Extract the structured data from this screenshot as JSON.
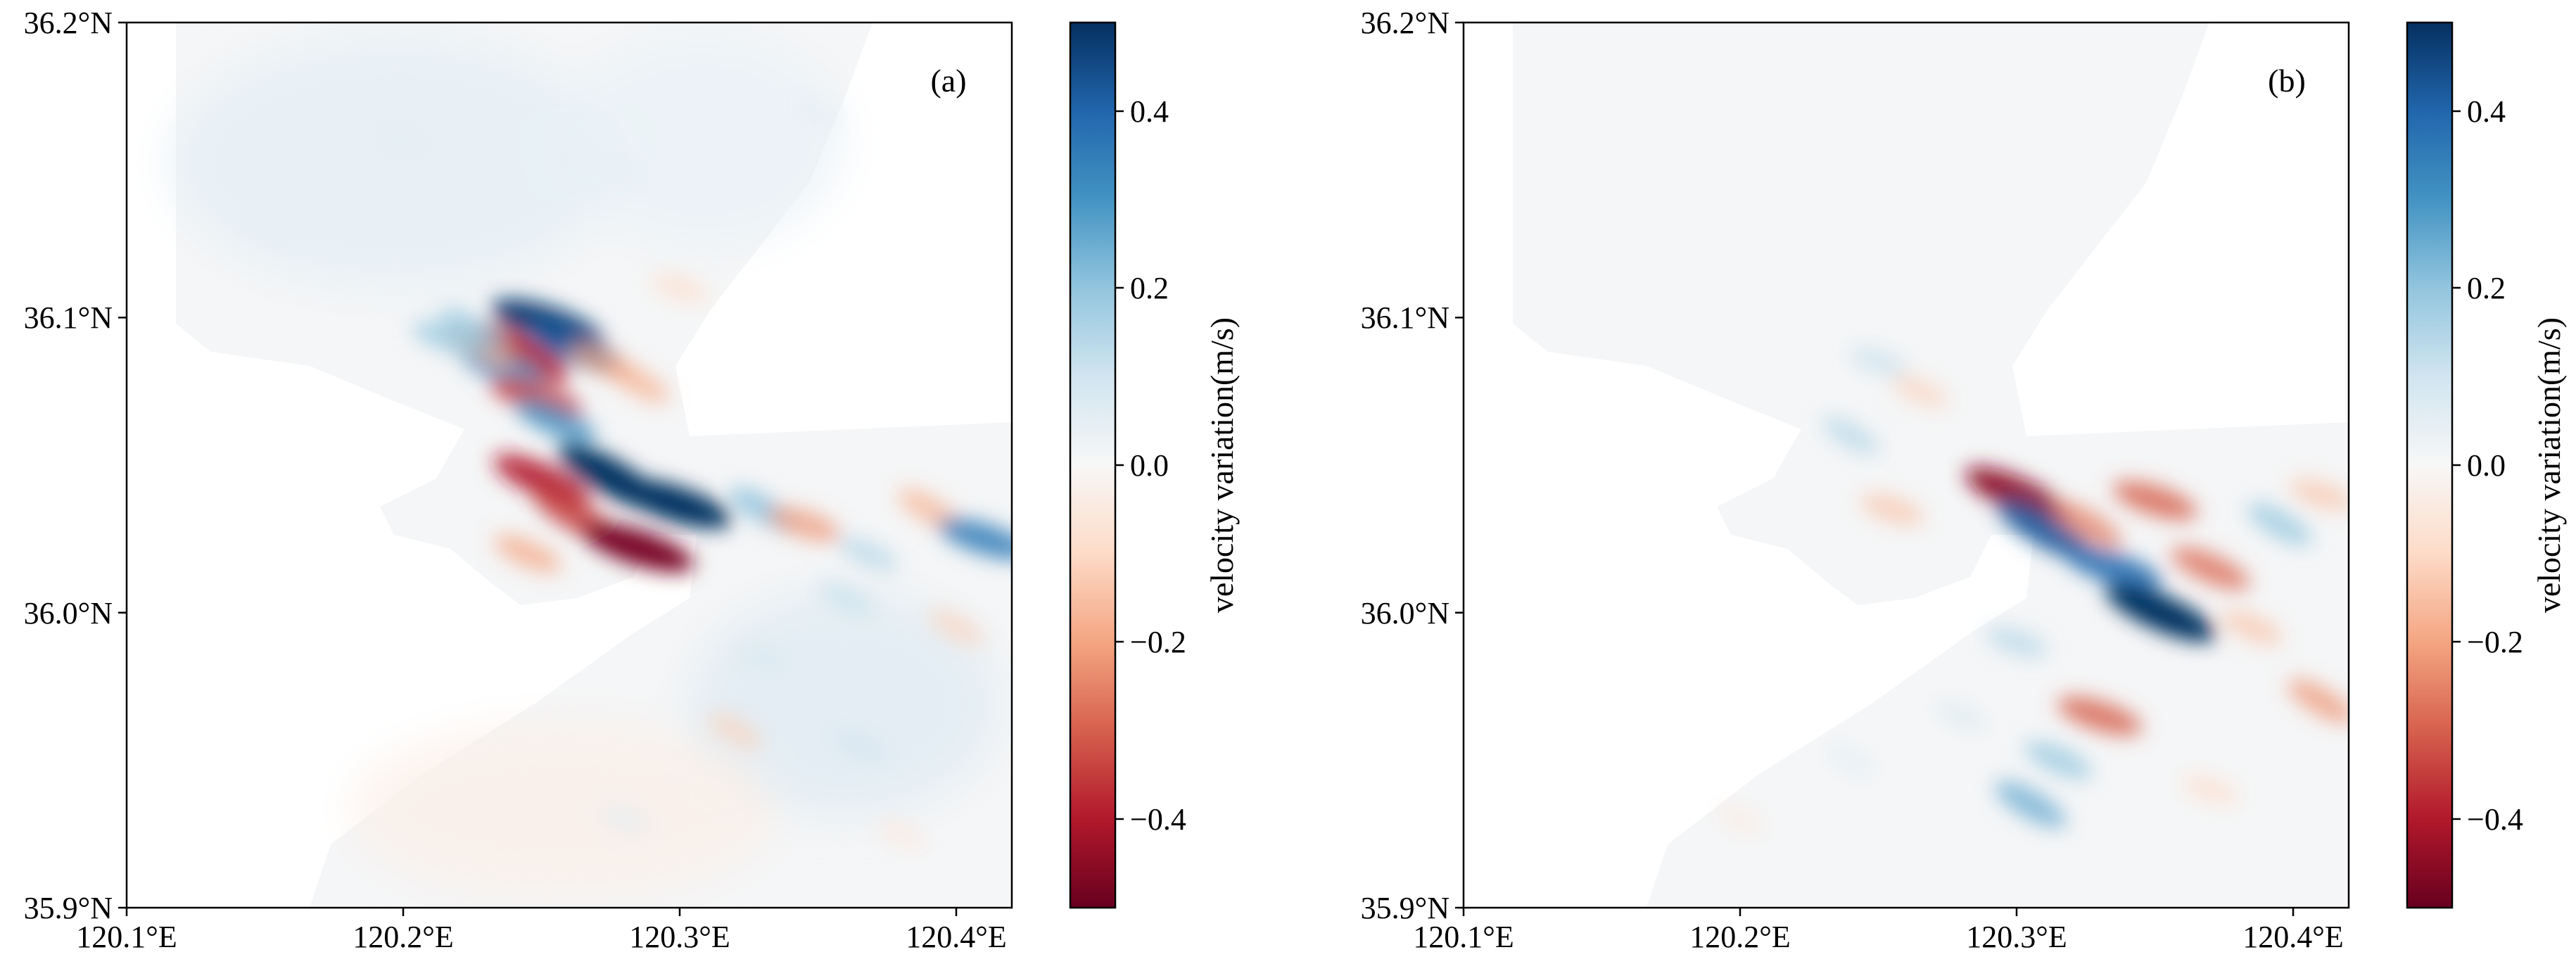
{
  "chart_data": [
    {
      "type": "heatmap",
      "panel_label": "(a)",
      "x_ticks": [
        "120.1°E",
        "120.2°E",
        "120.3°E",
        "120.4°E"
      ],
      "y_ticks": [
        "36.2°N",
        "36.1°N",
        "36.0°N",
        "35.9°N"
      ],
      "xlim": [
        120.1,
        120.42
      ],
      "ylim": [
        35.9,
        36.2
      ],
      "colorbar": {
        "label": "velocity variation(m/s)",
        "ticks": [
          "0.4",
          "0.2",
          "0.0",
          "−0.2",
          "−0.4"
        ],
        "range": [
          -0.5,
          0.5
        ],
        "colormap": "RdBu"
      },
      "features": [
        {
          "x": 120.252,
          "y": 36.098,
          "value": 0.48
        },
        {
          "x": 120.262,
          "y": 36.09,
          "value": 0.42
        },
        {
          "x": 120.243,
          "y": 36.088,
          "value": -0.4
        },
        {
          "x": 120.236,
          "y": 36.083,
          "value": 0.3
        },
        {
          "x": 120.228,
          "y": 36.09,
          "value": -0.2
        },
        {
          "x": 120.225,
          "y": 36.096,
          "value": 0.2
        },
        {
          "x": 120.216,
          "y": 36.093,
          "value": 0.2
        },
        {
          "x": 120.272,
          "y": 36.085,
          "value": -0.2
        },
        {
          "x": 120.285,
          "y": 36.078,
          "value": -0.18
        },
        {
          "x": 120.248,
          "y": 36.073,
          "value": -0.35
        },
        {
          "x": 120.255,
          "y": 36.065,
          "value": 0.3
        },
        {
          "x": 120.275,
          "y": 36.046,
          "value": 0.5
        },
        {
          "x": 120.298,
          "y": 36.037,
          "value": 0.5
        },
        {
          "x": 120.25,
          "y": 36.045,
          "value": -0.4
        },
        {
          "x": 120.262,
          "y": 36.033,
          "value": -0.35
        },
        {
          "x": 120.285,
          "y": 36.022,
          "value": -0.48
        },
        {
          "x": 120.245,
          "y": 36.02,
          "value": -0.2
        },
        {
          "x": 120.33,
          "y": 36.035,
          "value": 0.22
        },
        {
          "x": 120.345,
          "y": 36.03,
          "value": -0.22
        },
        {
          "x": 120.368,
          "y": 36.02,
          "value": 0.15
        },
        {
          "x": 120.39,
          "y": 36.035,
          "value": -0.18
        },
        {
          "x": 120.41,
          "y": 36.025,
          "value": 0.35
        },
        {
          "x": 120.36,
          "y": 36.005,
          "value": 0.12
        },
        {
          "x": 120.4,
          "y": 35.995,
          "value": -0.12
        },
        {
          "x": 120.33,
          "y": 35.985,
          "value": 0.08
        },
        {
          "x": 120.365,
          "y": 35.955,
          "value": 0.1
        },
        {
          "x": 120.32,
          "y": 35.96,
          "value": -0.12
        },
        {
          "x": 120.28,
          "y": 35.93,
          "value": 0.06
        },
        {
          "x": 120.38,
          "y": 35.925,
          "value": -0.06
        },
        {
          "x": 120.15,
          "y": 36.13,
          "value": 0.04
        },
        {
          "x": 120.2,
          "y": 36.16,
          "value": 0.05
        },
        {
          "x": 120.28,
          "y": 36.15,
          "value": 0.04
        },
        {
          "x": 120.35,
          "y": 36.17,
          "value": 0.05
        },
        {
          "x": 120.3,
          "y": 36.11,
          "value": -0.1
        }
      ]
    },
    {
      "type": "heatmap",
      "panel_label": "(b)",
      "x_ticks": [
        "120.1°E",
        "120.2°E",
        "120.3°E",
        "120.4°E"
      ],
      "y_ticks": [
        "36.2°N",
        "36.1°N",
        "36.0°N",
        "35.9°N"
      ],
      "xlim": [
        120.1,
        120.42
      ],
      "ylim": [
        35.9,
        36.2
      ],
      "colorbar": {
        "label": "velocity variation(m/s)",
        "ticks": [
          "0.4",
          "0.2",
          "0.0",
          "−0.2",
          "−0.4"
        ],
        "range": [
          -0.5,
          0.5
        ],
        "colormap": "RdBu"
      },
      "features": [
        {
          "x": 120.25,
          "y": 36.085,
          "value": 0.12
        },
        {
          "x": 120.265,
          "y": 36.075,
          "value": -0.12
        },
        {
          "x": 120.24,
          "y": 36.06,
          "value": 0.15
        },
        {
          "x": 120.255,
          "y": 36.035,
          "value": -0.15
        },
        {
          "x": 120.3,
          "y": 36.04,
          "value": -0.45
        },
        {
          "x": 120.31,
          "y": 36.028,
          "value": 0.42
        },
        {
          "x": 120.335,
          "y": 36.015,
          "value": 0.38
        },
        {
          "x": 120.352,
          "y": 36.0,
          "value": 0.5
        },
        {
          "x": 120.325,
          "y": 36.03,
          "value": -0.25
        },
        {
          "x": 120.35,
          "y": 36.038,
          "value": -0.3
        },
        {
          "x": 120.37,
          "y": 36.015,
          "value": -0.28
        },
        {
          "x": 120.395,
          "y": 36.03,
          "value": 0.2
        },
        {
          "x": 120.41,
          "y": 36.04,
          "value": -0.15
        },
        {
          "x": 120.385,
          "y": 35.995,
          "value": -0.15
        },
        {
          "x": 120.41,
          "y": 35.97,
          "value": -0.22
        },
        {
          "x": 120.33,
          "y": 35.965,
          "value": -0.3
        },
        {
          "x": 120.315,
          "y": 35.95,
          "value": 0.2
        },
        {
          "x": 120.305,
          "y": 35.935,
          "value": 0.25
        },
        {
          "x": 120.3,
          "y": 35.99,
          "value": 0.15
        },
        {
          "x": 120.28,
          "y": 35.965,
          "value": 0.08
        },
        {
          "x": 120.24,
          "y": 35.95,
          "value": 0.06
        },
        {
          "x": 120.37,
          "y": 35.94,
          "value": -0.1
        },
        {
          "x": 120.2,
          "y": 35.93,
          "value": -0.05
        }
      ]
    }
  ]
}
